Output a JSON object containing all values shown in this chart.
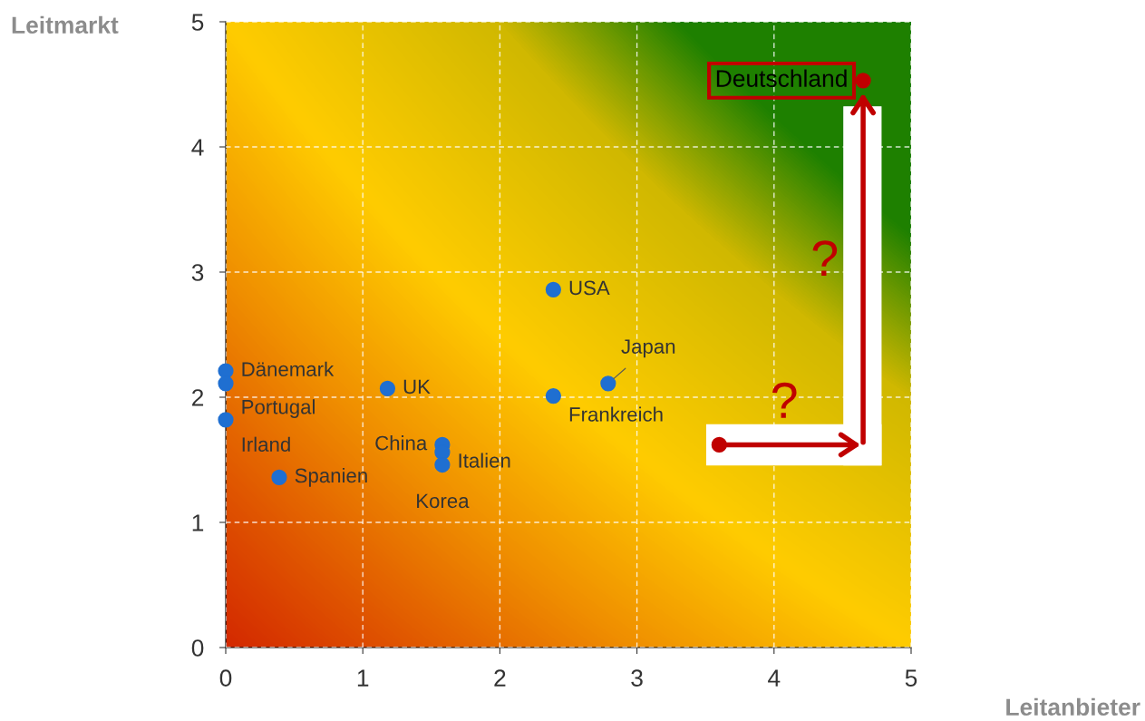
{
  "chart_data": {
    "type": "scatter",
    "xlabel": "Leitanbieter",
    "ylabel": "Leitmarkt",
    "xlim": [
      0,
      5
    ],
    "ylim": [
      0,
      5
    ],
    "xticks": [
      0,
      1,
      2,
      3,
      4,
      5
    ],
    "yticks": [
      0,
      1,
      2,
      3,
      4,
      5
    ],
    "grid": true,
    "marker": "circle",
    "series": [
      {
        "color": "#1f6fd1",
        "x": [
          0,
          0,
          0,
          0.39,
          1.18,
          1.58,
          1.58,
          1.58,
          2.39,
          2.39,
          2.79
        ],
        "values": [
          2.21,
          2.11,
          1.82,
          1.36,
          2.07,
          1.62,
          1.56,
          1.46,
          2.86,
          2.01,
          2.11
        ]
      },
      {
        "color": "#c00000",
        "x": [
          4.65,
          3.6
        ],
        "values": [
          4.53,
          1.62
        ]
      }
    ],
    "annotations": [
      {
        "text": "Dänemark",
        "x": 0,
        "y": 2.21
      },
      {
        "text": "Portugal",
        "x": 0,
        "y": 2.11
      },
      {
        "text": "Irland",
        "x": 0,
        "y": 1.82
      },
      {
        "text": "Spanien",
        "x": 0.39,
        "y": 1.36
      },
      {
        "text": "UK",
        "x": 1.18,
        "y": 2.07
      },
      {
        "text": "China",
        "x": 1.58,
        "y": 1.62
      },
      {
        "text": "Italien",
        "x": 1.58,
        "y": 1.56
      },
      {
        "text": "Korea",
        "x": 1.58,
        "y": 1.46
      },
      {
        "text": "USA",
        "x": 2.39,
        "y": 2.86
      },
      {
        "text": "Frankreich",
        "x": 2.39,
        "y": 2.01
      },
      {
        "text": "Japan",
        "x": 2.79,
        "y": 2.11
      },
      {
        "text": "Deutschland",
        "x": 4.65,
        "y": 4.53
      },
      "?",
      "?"
    ]
  }
}
